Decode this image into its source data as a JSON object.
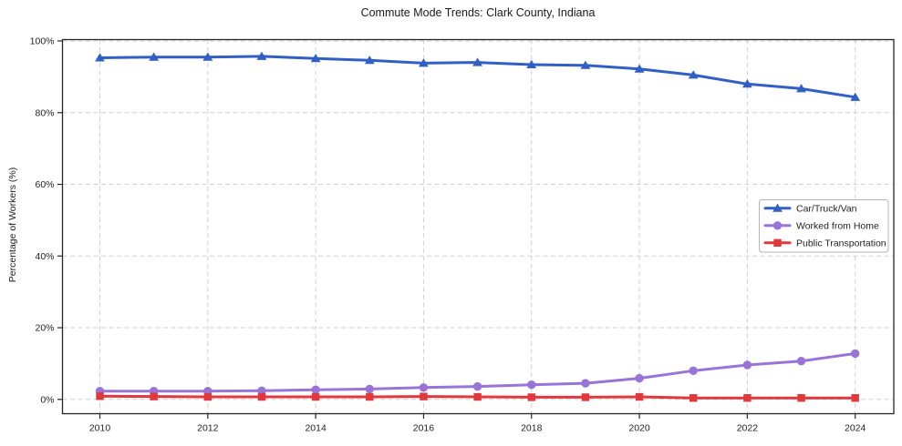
{
  "figure": {
    "title": "Commute Mode Trends: Clark County, Indiana"
  },
  "chart_data": {
    "type": "line",
    "title": "Commute Mode Trends: Clark County, Indiana",
    "xlabel": "",
    "ylabel": "Percentage of Workers (%)",
    "x": [
      2010,
      2011,
      2012,
      2013,
      2014,
      2015,
      2016,
      2017,
      2018,
      2019,
      2020,
      2021,
      2022,
      2023,
      2024
    ],
    "x_tick_labels": [
      "2010",
      "2012",
      "2014",
      "2016",
      "2018",
      "2020",
      "2022",
      "2024"
    ],
    "y_ticks": [
      0,
      20,
      40,
      60,
      80,
      100
    ],
    "y_tick_labels": [
      "0%",
      "20%",
      "40%",
      "60%",
      "80%",
      "100%"
    ],
    "ylim": [
      -4,
      100.5
    ],
    "grid": true,
    "grid_style": "dashed",
    "legend_position": "center-right",
    "series": [
      {
        "name": "Car/Truck/Van",
        "color": "#315fc4",
        "marker": "triangle",
        "values": [
          95.3,
          95.5,
          95.5,
          95.7,
          95.1,
          94.6,
          93.8,
          94.0,
          93.4,
          93.2,
          92.2,
          90.5,
          88.0,
          86.7,
          84.3
        ]
      },
      {
        "name": "Worked from Home",
        "color": "#9874d8",
        "marker": "circle",
        "values": [
          2.3,
          2.3,
          2.3,
          2.4,
          2.7,
          2.9,
          3.3,
          3.6,
          4.1,
          4.5,
          5.9,
          8.0,
          9.6,
          10.7,
          12.8
        ]
      },
      {
        "name": "Public Transportation",
        "color": "#e0383c",
        "marker": "square",
        "values": [
          0.9,
          0.8,
          0.7,
          0.7,
          0.7,
          0.7,
          0.8,
          0.7,
          0.6,
          0.6,
          0.7,
          0.4,
          0.4,
          0.4,
          0.4
        ]
      }
    ],
    "colors": {
      "grid": "#cfcfcf",
      "spine": "#262626",
      "legend_border": "#b5b5b5",
      "background": "#ffffff"
    }
  }
}
